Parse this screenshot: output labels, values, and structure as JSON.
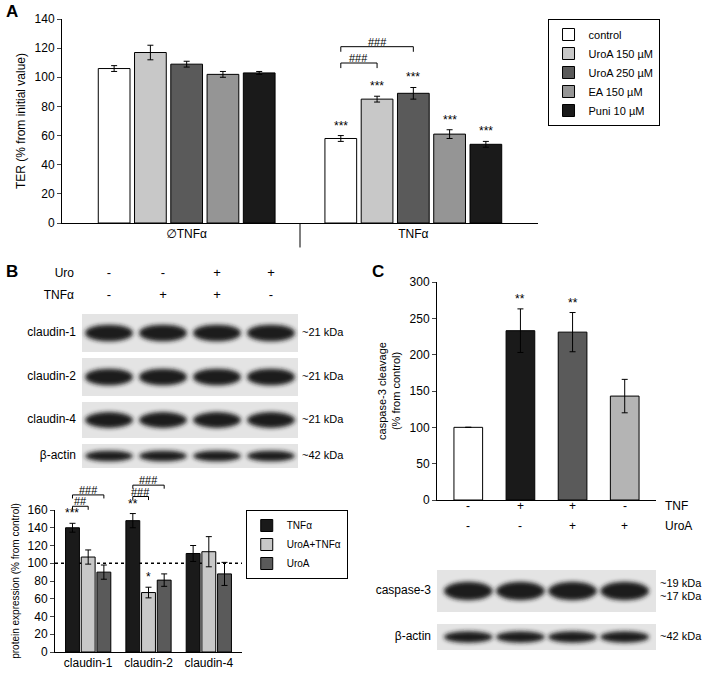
{
  "panel_labels": [
    "A",
    "B",
    "C"
  ],
  "chart_data": [
    {
      "type": "bar",
      "ylabel": "TER (% from initial value)",
      "categories": [
        "∅TNFα",
        "TNFα"
      ],
      "ylim": [
        0,
        140
      ],
      "yticks": [
        0,
        20,
        40,
        60,
        80,
        100,
        120,
        140
      ],
      "legend": "top right",
      "tick_labels": true,
      "series": [
        {
          "name": "control",
          "color": "#ffffff",
          "values": [
            106,
            58
          ],
          "errors": [
            2,
            2
          ],
          "stars": [
            null,
            "***"
          ]
        },
        {
          "name": "UroA 150 µM",
          "color": "#c8c8c8",
          "values": [
            117,
            85
          ],
          "errors": [
            5,
            2
          ],
          "stars": [
            null,
            "***"
          ]
        },
        {
          "name": "UroA 250 µM",
          "color": "#5a5a5a",
          "values": [
            109,
            89
          ],
          "errors": [
            2,
            4
          ],
          "stars": [
            null,
            "***"
          ]
        },
        {
          "name": "EA 150 µM",
          "color": "#959595",
          "values": [
            102,
            61
          ],
          "errors": [
            2,
            3
          ],
          "stars": [
            null,
            "***"
          ]
        },
        {
          "name": "Puni 10 µM",
          "color": "#1a1a1a",
          "values": [
            103,
            54
          ],
          "errors": [
            1,
            2
          ],
          "stars": [
            null,
            "***"
          ]
        }
      ],
      "brackets": [
        {
          "category": "TNFα",
          "from": "control",
          "to": "UroA 150 µM",
          "text": "###"
        },
        {
          "category": "TNFα",
          "from": "control",
          "to": "UroA 250 µM",
          "text": "###"
        }
      ]
    },
    {
      "type": "bar",
      "ylabel": "protein expression (% from control)",
      "categories": [
        "claudin-1",
        "claudin-2",
        "claudin-4"
      ],
      "ylim": [
        0,
        160
      ],
      "yticks": [
        0,
        20,
        40,
        60,
        80,
        100,
        120,
        140,
        160
      ],
      "legend": "top right",
      "tick_labels": true,
      "reference_line": 100,
      "series": [
        {
          "name": "TNFα",
          "color": "#1a1a1a",
          "values": [
            140,
            148,
            111
          ],
          "errors": [
            5,
            8,
            9
          ],
          "stars": [
            "***",
            "**",
            null
          ]
        },
        {
          "name": "UroA+TNFα",
          "color": "#c8c8c8",
          "values": [
            107,
            67,
            113
          ],
          "errors": [
            8,
            6,
            17
          ],
          "stars": [
            null,
            "*",
            null
          ]
        },
        {
          "name": "UroA",
          "color": "#5a5a5a",
          "values": [
            90,
            81,
            88
          ],
          "errors": [
            8,
            7,
            13
          ],
          "stars": [
            null,
            null,
            null
          ]
        }
      ],
      "brackets": [
        {
          "category": "claudin-1",
          "from": "TNFα",
          "to": "UroA+TNFα",
          "text": "##"
        },
        {
          "category": "claudin-1",
          "from": "TNFα",
          "to": "UroA",
          "text": "###"
        },
        {
          "category": "claudin-2",
          "from": "TNFα",
          "to": "UroA+TNFα",
          "text": "###"
        },
        {
          "category": "claudin-2",
          "from": "TNFα",
          "to": "UroA",
          "text": "###"
        }
      ]
    },
    {
      "type": "bar",
      "ylabel": [
        "caspase-3 cleavage",
        "(% from control)"
      ],
      "categories": [
        null,
        null,
        null,
        null
      ],
      "values": [
        100,
        233,
        231,
        143
      ],
      "errors": [
        null,
        30,
        27,
        23
      ],
      "stars": [
        null,
        "**",
        "**",
        null
      ],
      "colors": [
        "#ffffff",
        "#1a1a1a",
        "#5a5a5a",
        "#b4b4b4"
      ],
      "ylim": [
        0,
        300
      ],
      "yticks": [
        0,
        50,
        100,
        150,
        200,
        250,
        300
      ],
      "tick_labels": "y",
      "conditions": [
        {
          "label": "TNF",
          "signs": [
            "-",
            "+",
            "+",
            "-"
          ]
        },
        {
          "label": "UroA",
          "signs": [
            "-",
            "-",
            "+",
            "+"
          ]
        }
      ]
    }
  ],
  "blots": [
    {
      "panel": "B",
      "conditions": [
        {
          "label": "Uro",
          "signs": [
            "-",
            "-",
            "+",
            "+"
          ]
        },
        {
          "label": "TNFα",
          "signs": [
            "-",
            "+",
            "+",
            "-"
          ]
        }
      ],
      "rows": [
        {
          "label": "claudin-1",
          "size": "~21 kDa"
        },
        {
          "label": "claudin-2",
          "size": "~21 kDa"
        },
        {
          "label": "claudin-4",
          "size": "~21 kDa"
        },
        {
          "label": "β-actin",
          "size": "~42 kDa"
        }
      ]
    },
    {
      "panel": "C",
      "rows": [
        {
          "label": "caspase-3",
          "size": [
            "~19 kDa",
            "~17 kDa"
          ]
        },
        {
          "label": "β-actin",
          "size": "~42 kDa"
        }
      ]
    }
  ]
}
